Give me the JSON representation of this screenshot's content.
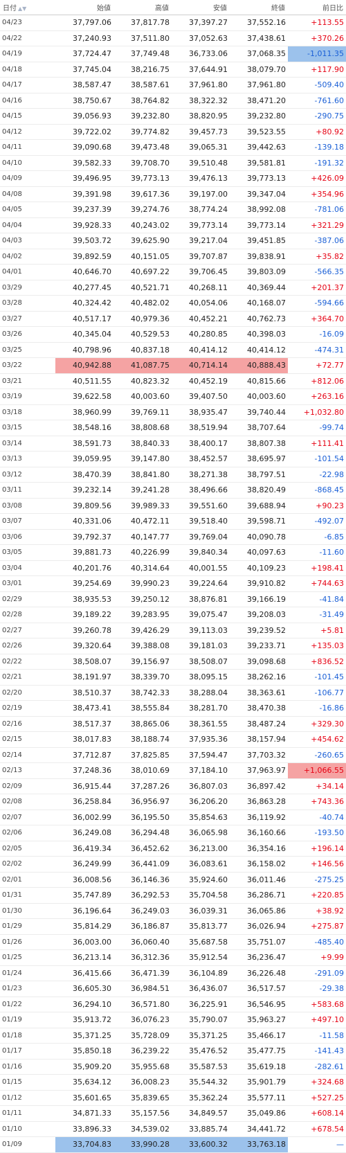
{
  "colors": {
    "positive": "#e60012",
    "negative": "#1a5fd6",
    "highlight_high": "#f5a3a3",
    "highlight_low": "#9cc2ec"
  },
  "header": {
    "date": "日付",
    "open": "始値",
    "high": "高値",
    "low": "安値",
    "close": "終値",
    "change": "前日比",
    "sort_icon": "sort-arrows-icon"
  },
  "rows": [
    {
      "d": "04/23",
      "o": "37,797.06",
      "h": "37,817.78",
      "l": "37,397.27",
      "c": "37,552.16",
      "ch": "+113.55"
    },
    {
      "d": "04/22",
      "o": "37,240.93",
      "h": "37,511.80",
      "l": "37,052.63",
      "c": "37,438.61",
      "ch": "+370.26"
    },
    {
      "d": "04/19",
      "o": "37,724.47",
      "h": "37,749.48",
      "l": "36,733.06",
      "c": "37,068.35",
      "ch": "-1,011.35",
      "hl_change": "blue"
    },
    {
      "d": "04/18",
      "o": "37,745.04",
      "h": "38,216.75",
      "l": "37,644.91",
      "c": "38,079.70",
      "ch": "+117.90"
    },
    {
      "d": "04/17",
      "o": "38,587.47",
      "h": "38,587.61",
      "l": "37,961.80",
      "c": "37,961.80",
      "ch": "-509.40"
    },
    {
      "d": "04/16",
      "o": "38,750.67",
      "h": "38,764.82",
      "l": "38,322.32",
      "c": "38,471.20",
      "ch": "-761.60"
    },
    {
      "d": "04/15",
      "o": "39,056.93",
      "h": "39,232.80",
      "l": "38,820.95",
      "c": "39,232.80",
      "ch": "-290.75"
    },
    {
      "d": "04/12",
      "o": "39,722.02",
      "h": "39,774.82",
      "l": "39,457.73",
      "c": "39,523.55",
      "ch": "+80.92"
    },
    {
      "d": "04/11",
      "o": "39,090.68",
      "h": "39,473.48",
      "l": "39,065.31",
      "c": "39,442.63",
      "ch": "-139.18"
    },
    {
      "d": "04/10",
      "o": "39,582.33",
      "h": "39,708.70",
      "l": "39,510.48",
      "c": "39,581.81",
      "ch": "-191.32"
    },
    {
      "d": "04/09",
      "o": "39,496.95",
      "h": "39,773.13",
      "l": "39,476.13",
      "c": "39,773.13",
      "ch": "+426.09"
    },
    {
      "d": "04/08",
      "o": "39,391.98",
      "h": "39,617.36",
      "l": "39,197.00",
      "c": "39,347.04",
      "ch": "+354.96"
    },
    {
      "d": "04/05",
      "o": "39,237.39",
      "h": "39,274.76",
      "l": "38,774.24",
      "c": "38,992.08",
      "ch": "-781.06"
    },
    {
      "d": "04/04",
      "o": "39,928.33",
      "h": "40,243.02",
      "l": "39,773.14",
      "c": "39,773.14",
      "ch": "+321.29"
    },
    {
      "d": "04/03",
      "o": "39,503.72",
      "h": "39,625.90",
      "l": "39,217.04",
      "c": "39,451.85",
      "ch": "-387.06"
    },
    {
      "d": "04/02",
      "o": "39,892.59",
      "h": "40,151.05",
      "l": "39,707.87",
      "c": "39,838.91",
      "ch": "+35.82"
    },
    {
      "d": "04/01",
      "o": "40,646.70",
      "h": "40,697.22",
      "l": "39,706.45",
      "c": "39,803.09",
      "ch": "-566.35"
    },
    {
      "d": "03/29",
      "o": "40,277.45",
      "h": "40,521.71",
      "l": "40,268.11",
      "c": "40,369.44",
      "ch": "+201.37"
    },
    {
      "d": "03/28",
      "o": "40,324.42",
      "h": "40,482.02",
      "l": "40,054.06",
      "c": "40,168.07",
      "ch": "-594.66"
    },
    {
      "d": "03/27",
      "o": "40,517.17",
      "h": "40,979.36",
      "l": "40,452.21",
      "c": "40,762.73",
      "ch": "+364.70"
    },
    {
      "d": "03/26",
      "o": "40,345.04",
      "h": "40,529.53",
      "l": "40,280.85",
      "c": "40,398.03",
      "ch": "-16.09"
    },
    {
      "d": "03/25",
      "o": "40,798.96",
      "h": "40,837.18",
      "l": "40,414.12",
      "c": "40,414.12",
      "ch": "-474.31"
    },
    {
      "d": "03/22",
      "o": "40,942.88",
      "h": "41,087.75",
      "l": "40,714.14",
      "c": "40,888.43",
      "ch": "+72.77",
      "hl_all": "red"
    },
    {
      "d": "03/21",
      "o": "40,511.55",
      "h": "40,823.32",
      "l": "40,452.19",
      "c": "40,815.66",
      "ch": "+812.06"
    },
    {
      "d": "03/19",
      "o": "39,622.58",
      "h": "40,003.60",
      "l": "39,407.50",
      "c": "40,003.60",
      "ch": "+263.16"
    },
    {
      "d": "03/18",
      "o": "38,960.99",
      "h": "39,769.11",
      "l": "38,935.47",
      "c": "39,740.44",
      "ch": "+1,032.80"
    },
    {
      "d": "03/15",
      "o": "38,548.16",
      "h": "38,808.68",
      "l": "38,519.94",
      "c": "38,707.64",
      "ch": "-99.74"
    },
    {
      "d": "03/14",
      "o": "38,591.73",
      "h": "38,840.33",
      "l": "38,400.17",
      "c": "38,807.38",
      "ch": "+111.41"
    },
    {
      "d": "03/13",
      "o": "39,059.95",
      "h": "39,147.80",
      "l": "38,452.57",
      "c": "38,695.97",
      "ch": "-101.54"
    },
    {
      "d": "03/12",
      "o": "38,470.39",
      "h": "38,841.80",
      "l": "38,271.38",
      "c": "38,797.51",
      "ch": "-22.98"
    },
    {
      "d": "03/11",
      "o": "39,232.14",
      "h": "39,241.28",
      "l": "38,496.66",
      "c": "38,820.49",
      "ch": "-868.45"
    },
    {
      "d": "03/08",
      "o": "39,809.56",
      "h": "39,989.33",
      "l": "39,551.60",
      "c": "39,688.94",
      "ch": "+90.23"
    },
    {
      "d": "03/07",
      "o": "40,331.06",
      "h": "40,472.11",
      "l": "39,518.40",
      "c": "39,598.71",
      "ch": "-492.07"
    },
    {
      "d": "03/06",
      "o": "39,792.37",
      "h": "40,147.77",
      "l": "39,769.04",
      "c": "40,090.78",
      "ch": "-6.85"
    },
    {
      "d": "03/05",
      "o": "39,881.73",
      "h": "40,226.99",
      "l": "39,840.34",
      "c": "40,097.63",
      "ch": "-11.60"
    },
    {
      "d": "03/04",
      "o": "40,201.76",
      "h": "40,314.64",
      "l": "40,001.55",
      "c": "40,109.23",
      "ch": "+198.41"
    },
    {
      "d": "03/01",
      "o": "39,254.69",
      "h": "39,990.23",
      "l": "39,224.64",
      "c": "39,910.82",
      "ch": "+744.63"
    },
    {
      "d": "02/29",
      "o": "38,935.53",
      "h": "39,250.12",
      "l": "38,876.81",
      "c": "39,166.19",
      "ch": "-41.84"
    },
    {
      "d": "02/28",
      "o": "39,189.22",
      "h": "39,283.95",
      "l": "39,075.47",
      "c": "39,208.03",
      "ch": "-31.49"
    },
    {
      "d": "02/27",
      "o": "39,260.78",
      "h": "39,426.29",
      "l": "39,113.03",
      "c": "39,239.52",
      "ch": "+5.81"
    },
    {
      "d": "02/26",
      "o": "39,320.64",
      "h": "39,388.08",
      "l": "39,181.03",
      "c": "39,233.71",
      "ch": "+135.03"
    },
    {
      "d": "02/22",
      "o": "38,508.07",
      "h": "39,156.97",
      "l": "38,508.07",
      "c": "39,098.68",
      "ch": "+836.52"
    },
    {
      "d": "02/21",
      "o": "38,191.97",
      "h": "38,339.70",
      "l": "38,095.15",
      "c": "38,262.16",
      "ch": "-101.45"
    },
    {
      "d": "02/20",
      "o": "38,510.37",
      "h": "38,742.33",
      "l": "38,288.04",
      "c": "38,363.61",
      "ch": "-106.77"
    },
    {
      "d": "02/19",
      "o": "38,473.41",
      "h": "38,555.84",
      "l": "38,281.70",
      "c": "38,470.38",
      "ch": "-16.86"
    },
    {
      "d": "02/16",
      "o": "38,517.37",
      "h": "38,865.06",
      "l": "38,361.55",
      "c": "38,487.24",
      "ch": "+329.30"
    },
    {
      "d": "02/15",
      "o": "38,017.83",
      "h": "38,188.74",
      "l": "37,935.36",
      "c": "38,157.94",
      "ch": "+454.62"
    },
    {
      "d": "02/14",
      "o": "37,712.87",
      "h": "37,825.85",
      "l": "37,594.47",
      "c": "37,703.32",
      "ch": "-260.65"
    },
    {
      "d": "02/13",
      "o": "37,248.36",
      "h": "38,010.69",
      "l": "37,184.10",
      "c": "37,963.97",
      "ch": "+1,066.55",
      "hl_change": "red"
    },
    {
      "d": "02/09",
      "o": "36,915.44",
      "h": "37,287.26",
      "l": "36,807.03",
      "c": "36,897.42",
      "ch": "+34.14"
    },
    {
      "d": "02/08",
      "o": "36,258.84",
      "h": "36,956.97",
      "l": "36,206.20",
      "c": "36,863.28",
      "ch": "+743.36"
    },
    {
      "d": "02/07",
      "o": "36,002.99",
      "h": "36,195.50",
      "l": "35,854.63",
      "c": "36,119.92",
      "ch": "-40.74"
    },
    {
      "d": "02/06",
      "o": "36,249.08",
      "h": "36,294.48",
      "l": "36,065.98",
      "c": "36,160.66",
      "ch": "-193.50"
    },
    {
      "d": "02/05",
      "o": "36,419.34",
      "h": "36,452.62",
      "l": "36,213.00",
      "c": "36,354.16",
      "ch": "+196.14"
    },
    {
      "d": "02/02",
      "o": "36,249.99",
      "h": "36,441.09",
      "l": "36,083.61",
      "c": "36,158.02",
      "ch": "+146.56"
    },
    {
      "d": "02/01",
      "o": "36,008.56",
      "h": "36,146.36",
      "l": "35,924.60",
      "c": "36,011.46",
      "ch": "-275.25"
    },
    {
      "d": "01/31",
      "o": "35,747.89",
      "h": "36,292.53",
      "l": "35,704.58",
      "c": "36,286.71",
      "ch": "+220.85"
    },
    {
      "d": "01/30",
      "o": "36,196.64",
      "h": "36,249.03",
      "l": "36,039.31",
      "c": "36,065.86",
      "ch": "+38.92"
    },
    {
      "d": "01/29",
      "o": "35,814.29",
      "h": "36,186.87",
      "l": "35,813.77",
      "c": "36,026.94",
      "ch": "+275.87"
    },
    {
      "d": "01/26",
      "o": "36,003.00",
      "h": "36,060.40",
      "l": "35,687.58",
      "c": "35,751.07",
      "ch": "-485.40"
    },
    {
      "d": "01/25",
      "o": "36,213.14",
      "h": "36,312.36",
      "l": "35,912.54",
      "c": "36,236.47",
      "ch": "+9.99"
    },
    {
      "d": "01/24",
      "o": "36,415.66",
      "h": "36,471.39",
      "l": "36,104.89",
      "c": "36,226.48",
      "ch": "-291.09"
    },
    {
      "d": "01/23",
      "o": "36,605.30",
      "h": "36,984.51",
      "l": "36,436.07",
      "c": "36,517.57",
      "ch": "-29.38"
    },
    {
      "d": "01/22",
      "o": "36,294.10",
      "h": "36,571.80",
      "l": "36,225.91",
      "c": "36,546.95",
      "ch": "+583.68"
    },
    {
      "d": "01/19",
      "o": "35,913.72",
      "h": "36,076.23",
      "l": "35,790.07",
      "c": "35,963.27",
      "ch": "+497.10"
    },
    {
      "d": "01/18",
      "o": "35,371.25",
      "h": "35,728.09",
      "l": "35,371.25",
      "c": "35,466.17",
      "ch": "-11.58"
    },
    {
      "d": "01/17",
      "o": "35,850.18",
      "h": "36,239.22",
      "l": "35,476.52",
      "c": "35,477.75",
      "ch": "-141.43"
    },
    {
      "d": "01/16",
      "o": "35,909.20",
      "h": "35,955.68",
      "l": "35,587.53",
      "c": "35,619.18",
      "ch": "-282.61"
    },
    {
      "d": "01/15",
      "o": "35,634.12",
      "h": "36,008.23",
      "l": "35,544.32",
      "c": "35,901.79",
      "ch": "+324.68"
    },
    {
      "d": "01/12",
      "o": "35,601.65",
      "h": "35,839.65",
      "l": "35,362.24",
      "c": "35,577.11",
      "ch": "+527.25"
    },
    {
      "d": "01/11",
      "o": "34,871.33",
      "h": "35,157.56",
      "l": "34,849.57",
      "c": "35,049.86",
      "ch": "+608.14"
    },
    {
      "d": "01/10",
      "o": "33,896.33",
      "h": "34,539.02",
      "l": "33,885.74",
      "c": "34,441.72",
      "ch": "+678.54"
    },
    {
      "d": "01/09",
      "o": "33,704.83",
      "h": "33,990.28",
      "l": "33,600.32",
      "c": "33,763.18",
      "ch": "—",
      "hl_all": "blue"
    }
  ]
}
